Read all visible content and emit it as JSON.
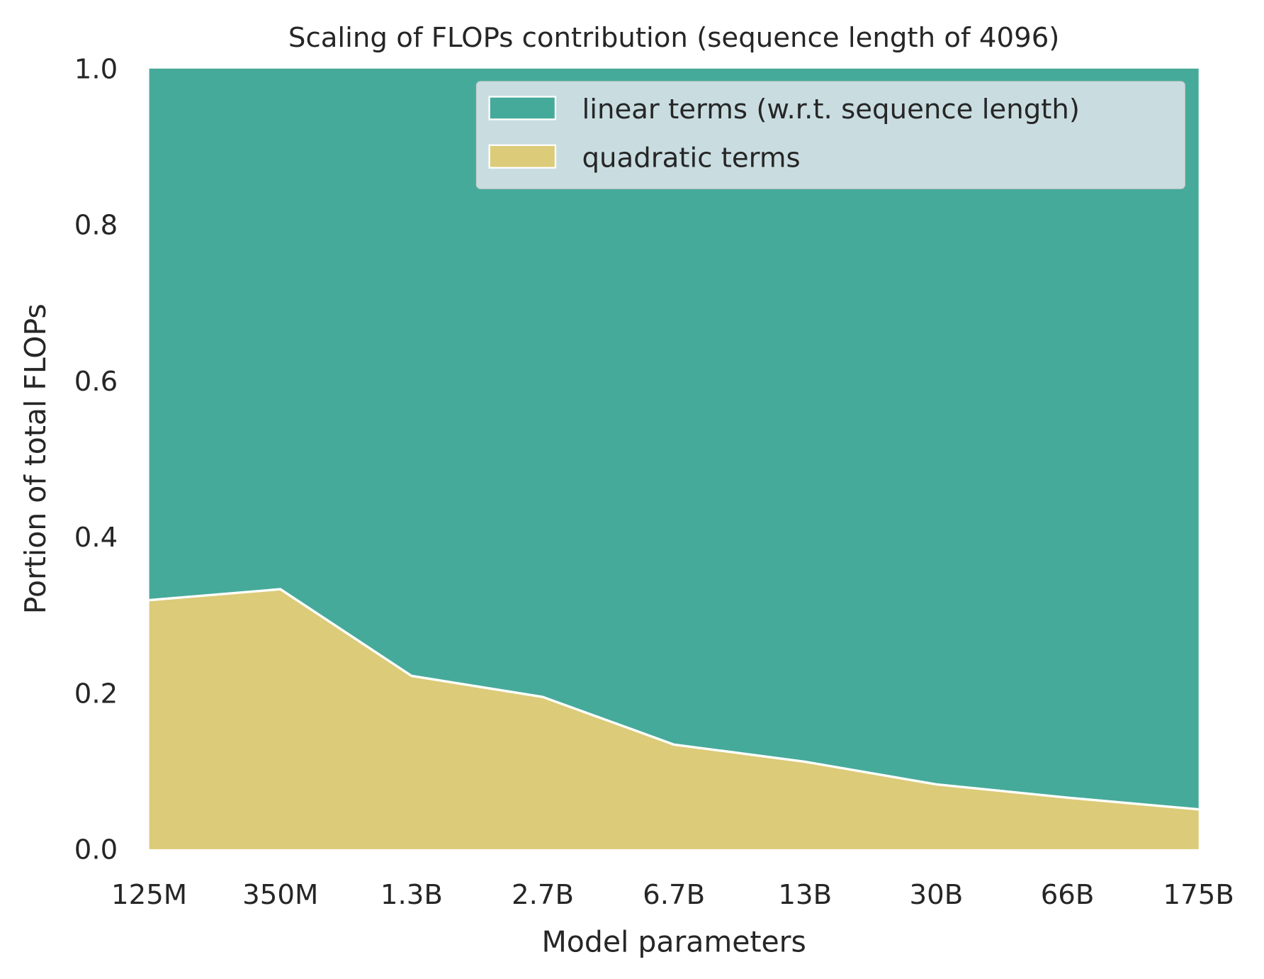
{
  "chart_data": {
    "type": "area",
    "stacked": true,
    "title": "Scaling of FLOPs contribution (sequence length of 4096)",
    "xlabel": "Model parameters",
    "ylabel": "Portion of total FLOPs",
    "categories": [
      "125M",
      "350M",
      "1.3B",
      "2.7B",
      "6.7B",
      "13B",
      "30B",
      "66B",
      "175B"
    ],
    "ylim": [
      0,
      1
    ],
    "yticks": [
      "0.0",
      "0.2",
      "0.4",
      "0.6",
      "0.8",
      "1.0"
    ],
    "grid": false,
    "legend_position": "top-right",
    "series": [
      {
        "name": "quadratic terms",
        "color": "#dccb78",
        "values": [
          0.319,
          0.333,
          0.222,
          0.195,
          0.134,
          0.112,
          0.083,
          0.066,
          0.051
        ]
      },
      {
        "name": "linear terms (w.r.t. sequence length)",
        "color": "#46aa9a",
        "values": [
          0.681,
          0.667,
          0.778,
          0.805,
          0.866,
          0.888,
          0.917,
          0.934,
          0.949
        ]
      }
    ]
  }
}
